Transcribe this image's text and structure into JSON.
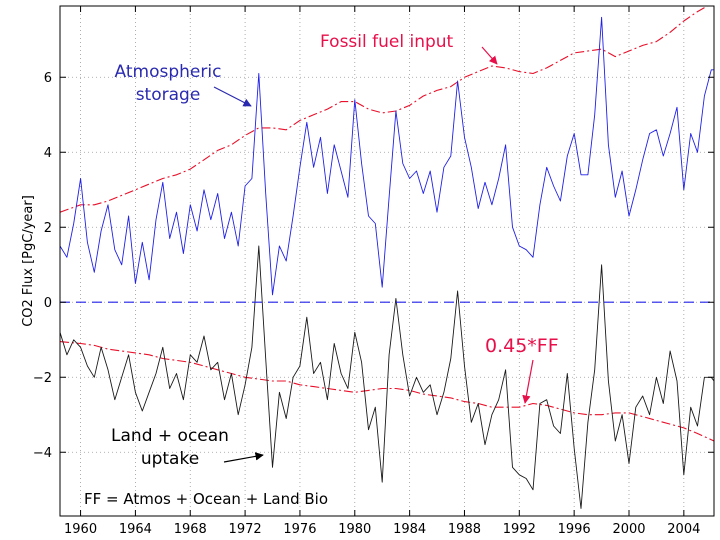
{
  "chart_data": {
    "type": "line",
    "title": "",
    "xlabel": "",
    "ylabel": "CO2 Flux [PgC/year]",
    "xlim": [
      1958.5,
      2006.2
    ],
    "ylim": [
      -5.7,
      7.9
    ],
    "grid": true,
    "x_ticks": [
      1960,
      1964,
      1968,
      1972,
      1976,
      1980,
      1984,
      1988,
      1992,
      1996,
      2000,
      2004
    ],
    "x_tick_labels": [
      "1960",
      "1964",
      "1968",
      "1972",
      "1976",
      "1980",
      "1984",
      "1988",
      "1992",
      "1996",
      "2000",
      "2004"
    ],
    "y_ticks": [
      -4,
      -2,
      0,
      2,
      4,
      6
    ],
    "y_tick_labels": [
      "−4",
      "−2",
      "0",
      "2",
      "4",
      "6"
    ],
    "series": [
      {
        "name": "Fossil fuel input",
        "color": "#e8102a",
        "style": "dashdot",
        "x": [
          1958.5,
          1960,
          1961,
          1962,
          1963,
          1964,
          1965,
          1966,
          1967,
          1968,
          1969,
          1970,
          1971,
          1972,
          1973,
          1974,
          1975,
          1976,
          1977,
          1978,
          1979,
          1980,
          1981,
          1982,
          1983,
          1984,
          1985,
          1986,
          1987,
          1988,
          1989,
          1990,
          1991,
          1992,
          1993,
          1994,
          1995,
          1996,
          1997,
          1998,
          1999,
          2000,
          2001,
          2002,
          2003,
          2004,
          2005,
          2006.2
        ],
        "values": [
          2.4,
          2.6,
          2.6,
          2.7,
          2.85,
          3.0,
          3.15,
          3.3,
          3.4,
          3.55,
          3.8,
          4.05,
          4.2,
          4.45,
          4.65,
          4.65,
          4.6,
          4.85,
          5.0,
          5.15,
          5.35,
          5.35,
          5.15,
          5.05,
          5.1,
          5.25,
          5.5,
          5.65,
          5.75,
          6.0,
          6.15,
          6.3,
          6.25,
          6.15,
          6.1,
          6.25,
          6.45,
          6.65,
          6.7,
          6.75,
          6.55,
          6.7,
          6.85,
          6.95,
          7.2,
          7.5,
          7.75,
          8.0
        ]
      },
      {
        "name": "Atmospheric storage",
        "color": "#2020e8",
        "style": "solid",
        "x": [
          1958.5,
          1959,
          1959.5,
          1960,
          1960.5,
          1961,
          1961.5,
          1962,
          1962.5,
          1963,
          1963.5,
          1964,
          1964.5,
          1965,
          1965.5,
          1966,
          1966.5,
          1967,
          1967.5,
          1968,
          1968.5,
          1969,
          1969.5,
          1970,
          1970.5,
          1971,
          1971.5,
          1972,
          1972.5,
          1973,
          1973.5,
          1974,
          1974.5,
          1975,
          1975.5,
          1976,
          1976.5,
          1977,
          1977.5,
          1978,
          1978.5,
          1979,
          1979.5,
          1980,
          1980.5,
          1981,
          1981.5,
          1982,
          1982.5,
          1983,
          1983.5,
          1984,
          1984.5,
          1985,
          1985.5,
          1986,
          1986.5,
          1987,
          1987.5,
          1988,
          1988.5,
          1989,
          1989.5,
          1990,
          1990.5,
          1991,
          1991.5,
          1992,
          1992.5,
          1993,
          1993.5,
          1994,
          1994.5,
          1995,
          1995.5,
          1996,
          1996.5,
          1997,
          1997.5,
          1998,
          1998.5,
          1999,
          1999.5,
          2000,
          2000.5,
          2001,
          2001.5,
          2002,
          2002.5,
          2003,
          2003.5,
          2004,
          2004.5,
          2005,
          2005.5,
          2006,
          2006.2
        ],
        "values": [
          1.5,
          1.2,
          2.1,
          3.3,
          1.6,
          0.8,
          1.9,
          2.6,
          1.4,
          1.0,
          2.3,
          0.5,
          1.6,
          0.6,
          2.2,
          3.2,
          1.7,
          2.4,
          1.3,
          2.6,
          1.9,
          3.0,
          2.2,
          2.9,
          1.7,
          2.4,
          1.5,
          3.1,
          3.3,
          6.1,
          2.9,
          0.2,
          1.5,
          1.1,
          2.3,
          3.6,
          4.8,
          3.6,
          4.4,
          2.9,
          4.2,
          3.5,
          2.8,
          5.4,
          3.7,
          2.3,
          2.1,
          0.4,
          2.8,
          5.1,
          3.7,
          3.3,
          3.5,
          2.9,
          3.5,
          2.4,
          3.6,
          3.9,
          5.9,
          4.4,
          3.6,
          2.5,
          3.2,
          2.6,
          3.3,
          4.2,
          2.0,
          1.5,
          1.4,
          1.2,
          2.6,
          3.6,
          3.1,
          2.7,
          3.9,
          4.5,
          3.4,
          3.4,
          5.0,
          7.6,
          4.2,
          2.8,
          3.5,
          2.3,
          3.0,
          3.8,
          4.5,
          4.6,
          3.9,
          4.5,
          5.2,
          3.0,
          4.5,
          4.0,
          5.5,
          6.2,
          6.2
        ]
      },
      {
        "name": "0.45*FF",
        "color": "#e8102a",
        "style": "dashdot",
        "x": [
          1958.5,
          1960,
          1961,
          1962,
          1963,
          1964,
          1965,
          1966,
          1967,
          1968,
          1969,
          1970,
          1971,
          1972,
          1973,
          1974,
          1975,
          1976,
          1977,
          1978,
          1979,
          1980,
          1981,
          1982,
          1983,
          1984,
          1985,
          1986,
          1987,
          1988,
          1989,
          1990,
          1991,
          1992,
          1993,
          1994,
          1995,
          1996,
          1997,
          1998,
          1999,
          2000,
          2001,
          2002,
          2003,
          2004,
          2005,
          2006.2
        ],
        "values": [
          -1.05,
          -1.1,
          -1.15,
          -1.25,
          -1.3,
          -1.35,
          -1.4,
          -1.5,
          -1.55,
          -1.6,
          -1.7,
          -1.8,
          -1.9,
          -2.0,
          -2.05,
          -2.1,
          -2.1,
          -2.2,
          -2.25,
          -2.3,
          -2.35,
          -2.4,
          -2.35,
          -2.3,
          -2.3,
          -2.35,
          -2.45,
          -2.5,
          -2.55,
          -2.65,
          -2.7,
          -2.8,
          -2.8,
          -2.8,
          -2.7,
          -2.75,
          -2.85,
          -2.95,
          -3.0,
          -3.0,
          -2.95,
          -2.95,
          -3.05,
          -3.15,
          -3.25,
          -3.35,
          -3.5,
          -3.7
        ]
      },
      {
        "name": "Land + ocean uptake",
        "color": "#1a1a1a",
        "style": "solid",
        "x": [
          1958.5,
          1959,
          1959.5,
          1960,
          1960.5,
          1961,
          1961.5,
          1962,
          1962.5,
          1963,
          1963.5,
          1964,
          1964.5,
          1965,
          1965.5,
          1966,
          1966.5,
          1967,
          1967.5,
          1968,
          1968.5,
          1969,
          1969.5,
          1970,
          1970.5,
          1971,
          1971.5,
          1972,
          1972.5,
          1973,
          1973.5,
          1974,
          1974.5,
          1975,
          1975.5,
          1976,
          1976.5,
          1977,
          1977.5,
          1978,
          1978.5,
          1979,
          1979.5,
          1980,
          1980.5,
          1981,
          1981.5,
          1982,
          1982.5,
          1983,
          1983.5,
          1984,
          1984.5,
          1985,
          1985.5,
          1986,
          1986.5,
          1987,
          1987.5,
          1988,
          1988.5,
          1989,
          1989.5,
          1990,
          1990.5,
          1991,
          1991.5,
          1992,
          1992.5,
          1993,
          1993.5,
          1994,
          1994.5,
          1995,
          1995.5,
          1996,
          1996.5,
          1997,
          1997.5,
          1998,
          1998.5,
          1999,
          1999.5,
          2000,
          2000.5,
          2001,
          2001.5,
          2002,
          2002.5,
          2003,
          2003.5,
          2004,
          2004.5,
          2005,
          2005.5,
          2006,
          2006.2
        ],
        "values": [
          -0.8,
          -1.4,
          -1.0,
          -1.2,
          -1.7,
          -2.0,
          -1.2,
          -1.8,
          -2.6,
          -2.0,
          -1.4,
          -2.4,
          -2.9,
          -2.4,
          -1.9,
          -1.2,
          -2.3,
          -1.9,
          -2.6,
          -1.4,
          -1.6,
          -0.9,
          -1.8,
          -1.6,
          -2.6,
          -1.9,
          -3.0,
          -2.2,
          -1.2,
          1.5,
          -1.5,
          -4.4,
          -2.4,
          -3.1,
          -2.0,
          -1.7,
          -0.4,
          -1.9,
          -1.6,
          -2.6,
          -1.1,
          -1.9,
          -2.3,
          -0.8,
          -1.6,
          -3.4,
          -2.8,
          -4.8,
          -1.4,
          0.1,
          -1.4,
          -2.5,
          -2.0,
          -2.4,
          -2.2,
          -3.0,
          -2.4,
          -1.5,
          0.3,
          -1.7,
          -3.2,
          -2.7,
          -3.8,
          -3.0,
          -2.6,
          -1.8,
          -4.4,
          -4.6,
          -4.7,
          -5.0,
          -2.7,
          -2.6,
          -3.3,
          -3.5,
          -1.9,
          -3.9,
          -5.5,
          -3.2,
          -1.8,
          1.0,
          -2.1,
          -3.7,
          -3.0,
          -4.3,
          -2.8,
          -2.5,
          -3.0,
          -2.0,
          -2.7,
          -1.3,
          -2.1,
          -4.6,
          -2.8,
          -3.3,
          -2.0,
          -2.0,
          -2.1
        ]
      },
      {
        "name": "zero line",
        "color": "#2020e8",
        "style": "dashed",
        "x": [
          1958.5,
          2006.2
        ],
        "values": [
          0,
          0
        ]
      }
    ],
    "annotations": [
      {
        "text": "Fossil fuel input",
        "color": "#e8104a",
        "target": [
          1990.3,
          6.3
        ]
      },
      {
        "text_lines": [
          "Atmospheric",
          "storage"
        ],
        "color": "#2a2ab0",
        "target": [
          1972.7,
          5.0
        ]
      },
      {
        "text": "0.45*FF",
        "color": "#e8104a",
        "target": [
          1992.5,
          -2.8
        ]
      },
      {
        "text_lines": [
          "Land + ocean",
          "uptake"
        ],
        "color": "#000000",
        "target": [
          1973.7,
          -4.3
        ]
      },
      {
        "text": "FF = Atmos + Ocean + Land Bio",
        "color": "#000000"
      }
    ]
  }
}
